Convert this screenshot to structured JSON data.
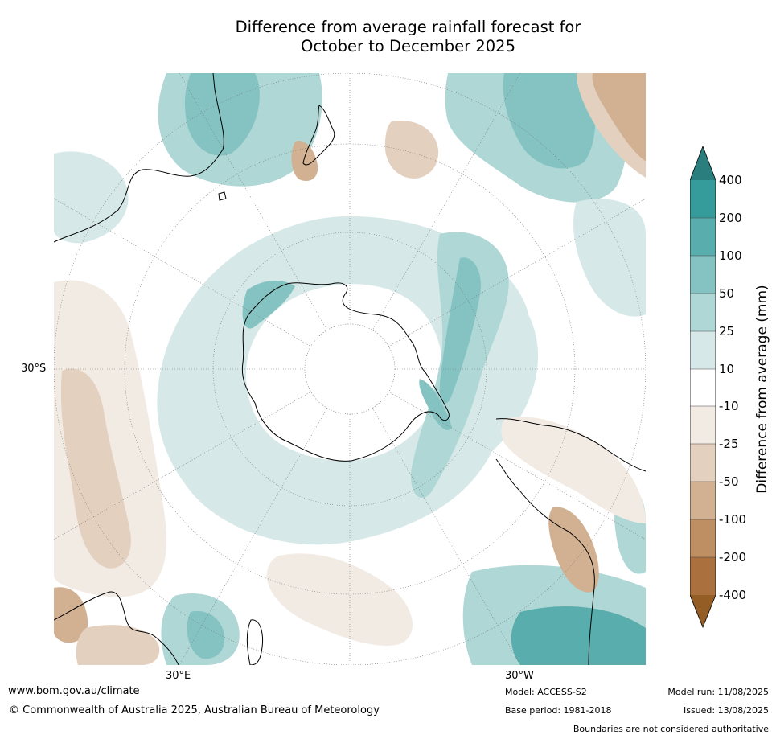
{
  "title": {
    "line1": "Difference from average rainfall forecast for",
    "line2": "October to December 2025"
  },
  "map": {
    "projection": "south polar stereographic",
    "latitude_label": "30°S",
    "longitude_labels": {
      "east": "30°E",
      "west": "30°W"
    }
  },
  "legend": {
    "title": "Difference from average (mm)",
    "ticks": [
      "400",
      "200",
      "100",
      "50",
      "25",
      "10",
      "-10",
      "-25",
      "-50",
      "-100",
      "-200",
      "-400"
    ],
    "colors": {
      "gt_400": "#2a7f7e",
      "200_400": "#359c9b",
      "100_200": "#5aadad",
      "50_100": "#85c3c2",
      "25_50": "#aed7d6",
      "10_25": "#d6e9e8",
      "neutral": "#ffffff",
      "m25_m10": "#f2ebe4",
      "m50_m25": "#e4d0bf",
      "m100_m50": "#d2b192",
      "m200_m100": "#be8f62",
      "m400_m200": "#aa713e",
      "lt_m400": "#935d25"
    }
  },
  "footer": {
    "website": "www.bom.gov.au/climate",
    "copyright": "© Commonwealth of Australia 2025, Australian Bureau of Meteorology",
    "model": "Model: ACCESS-S2",
    "base_period": "Base period: 1981-2018",
    "model_run": "Model run: 11/08/2025",
    "issued": "Issued: 13/08/2025",
    "disclaimer": "Boundaries are not considered authoritative"
  }
}
